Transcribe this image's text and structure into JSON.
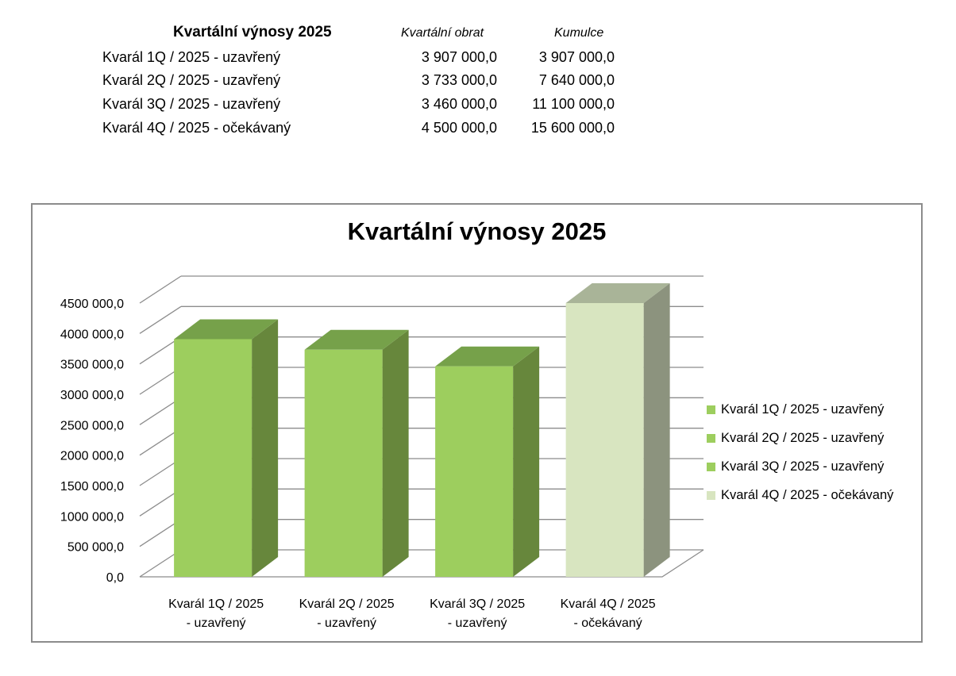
{
  "table": {
    "title": "Kvartální výnosy  2025",
    "col_obrat": "Kvartální obrat",
    "col_kumulce": "Kumulce",
    "rows": [
      {
        "label": "Kvarál 1Q / 2025 - uzavřený",
        "obrat": "3 907 000,0",
        "kumulce": "3 907 000,0"
      },
      {
        "label": "Kvarál 2Q / 2025 - uzavřený",
        "obrat": "3 733 000,0",
        "kumulce": "7 640 000,0"
      },
      {
        "label": "Kvarál 3Q / 2025 - uzavřený",
        "obrat": "3 460 000,0",
        "kumulce": "11 100 000,0"
      },
      {
        "label": "Kvarál 4Q / 2025 - očekávaný",
        "obrat": "4 500 000,0",
        "kumulce": "15 600 000,0"
      }
    ]
  },
  "chart_data": {
    "type": "bar",
    "style": "3d-column",
    "title": "Kvartální výnosy  2025",
    "categories": [
      [
        "Kvarál 1Q / 2025",
        "- uzavřený"
      ],
      [
        "Kvarál 2Q / 2025",
        "- uzavřený"
      ],
      [
        "Kvarál 3Q / 2025",
        "- uzavřený"
      ],
      [
        "Kvarál 4Q / 2025",
        "- očekávaný"
      ]
    ],
    "values": [
      3907000,
      3733000,
      3460000,
      4500000
    ],
    "ylim": [
      0,
      4500000
    ],
    "yticks": [
      "0,0",
      "500 000,0",
      "1000 000,0",
      "1500 000,0",
      "2000 000,0",
      "2500 000,0",
      "3000 000,0",
      "3500 000,0",
      "4000 000,0",
      "4500 000,0"
    ],
    "grid": true,
    "legend_position": "right",
    "legend": [
      {
        "label": "Kvarál 1Q /  2025 - uzavřený",
        "color": "#9dce5e"
      },
      {
        "label": "Kvarál 2Q /  2025 - uzavřený",
        "color": "#9dce5e"
      },
      {
        "label": "Kvarál 3Q /  2025 - uzavřený",
        "color": "#9dce5e"
      },
      {
        "label": "Kvarál 4Q /  2025 - očekávaný",
        "color": "#d8e5c0"
      }
    ],
    "colors": {
      "closed_front": "#9dce5e",
      "closed_top": "#76a14a",
      "closed_side": "#67873c",
      "expected_front": "#d8e5c0",
      "expected_top": "#a9b498",
      "expected_side": "#8c937e",
      "grid": "#8c8c8c"
    }
  }
}
